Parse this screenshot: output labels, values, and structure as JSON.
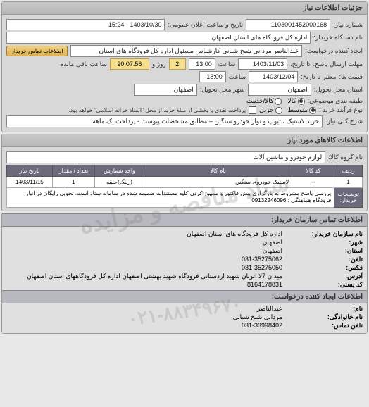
{
  "watermark": "ستاد مناقصه و مزایده",
  "watermark_phone": "۰۲۱-۸۸۳۴۹۶۷۰",
  "panel1": {
    "title": "جزئیات اطلاعات نیاز",
    "fields": {
      "request_no_label": "شماره نیاز:",
      "request_no": "1103001452000168",
      "announce_label": "تاریخ و ساعت اعلان عمومی:",
      "announce_value": "1403/10/30 - 15:24",
      "requester_label": "نام دستگاه خریدار:",
      "requester_value": "اداره کل فرودگاه های استان اصفهان",
      "creator_label": "ایجاد کننده درخواست:",
      "creator_value": "عبدالناصر مردانی شیخ شبانی  کارشناس مسئول   اداره کل فرودگاه های استان",
      "contact_btn": "اطلاعات تماس خریدار",
      "deadline_label": "مهلت ارسال پاسخ:",
      "deadline_tolabel": "تا تاریخ:",
      "deadline_date": "1403/11/03",
      "time_label": "ساعت",
      "deadline_time": "13:00",
      "remain_days": "2",
      "remain_unit": "روز و",
      "remain_time": "20:07:56",
      "remain_suffix": "ساعت باقی مانده",
      "validity_label": "قیمت ها:",
      "validity_tolabel": "معتبر تا تاریخ:",
      "validity_date": "1403/12/04",
      "validity_time": "18:00",
      "location_label": "استان محل تحویل:",
      "location_value": "اصفهان",
      "city_label": "شهر محل تحویل:",
      "city_value": "اصفهان",
      "pack_label": "طبقه بندی موضوعی:",
      "pack_opts": [
        "کالا",
        "کالا/خدمت"
      ],
      "pack_sel": 0,
      "process_label": "نوع فرآیند خرید :",
      "process_opts": [
        "متوسط",
        "جزیی"
      ],
      "process_sel": 0,
      "warn_icon_label": "پرداخت نقدی یا بخشی از مبلغ خرید،از محل \"اسناد خزانه اسلامی\" خواهد بود.",
      "desc_label": "شرح کلی نیاز:",
      "desc_value": "خرید لاستیک ، تیوپ و نوار خودرو سنگین  – مطابق مشخصات پیوست - پرداخت یک ماهه"
    }
  },
  "panel2": {
    "title": "اطلاعات کالاهای مورد نیاز",
    "group_label": "نام گروه کالا:",
    "group_value": "لوازم خودرو و ماشین آلات",
    "table": {
      "headers": [
        "ردیف",
        "کد کالا",
        "نام کالا",
        "واحد شمارش",
        "تعداد / مقدار",
        "تاریخ نیاز"
      ],
      "rows": [
        [
          "1",
          "--",
          "لاستیک خودروی سنگین",
          "(رینگ)حلقه",
          "1",
          "1403/11/15"
        ]
      ]
    },
    "note_label": "توضیحات خریدار:",
    "note_value": "بررسی پاسخ مشروط به بارگزاری پیش فاکتور و ممهور کردن کلیه مستندات ضمیمه شده در سامانه ستاد است. تحویل رایگان در انبار فرودگاه هماهنگی : 09132246096"
  },
  "panel3": {
    "title": "اطلاعات تماس سازمان خریدار:",
    "rows": [
      {
        "label": "نام سازمان خریدار:",
        "value": "اداره کل فرودگاه های استان اصفهان"
      },
      {
        "label": "شهر:",
        "value": "اصفهان"
      },
      {
        "label": "استان:",
        "value": "اصفهان"
      },
      {
        "label": "تلفن:",
        "value": "031-35275062"
      },
      {
        "label": "فکس:",
        "value": "031-35275050"
      },
      {
        "label": "آدرس:",
        "value": "میدان 7لا  اتوبان شهید اردستانی فرودگاه شهید بهشتی اصفهان اداره کل فرودگاههای استان اصفهان"
      },
      {
        "label": "کد پستی:",
        "value": "8164178831"
      }
    ],
    "sub_title": "اطلاعات ایجاد کننده درخواست:",
    "sub_rows": [
      {
        "label": "نام:",
        "value": "عبدالناصر"
      },
      {
        "label": "نام خانوادگی:",
        "value": "مردانی شیخ شبانی"
      },
      {
        "label": "تلفن تماس:",
        "value": "031-33998402"
      }
    ]
  }
}
